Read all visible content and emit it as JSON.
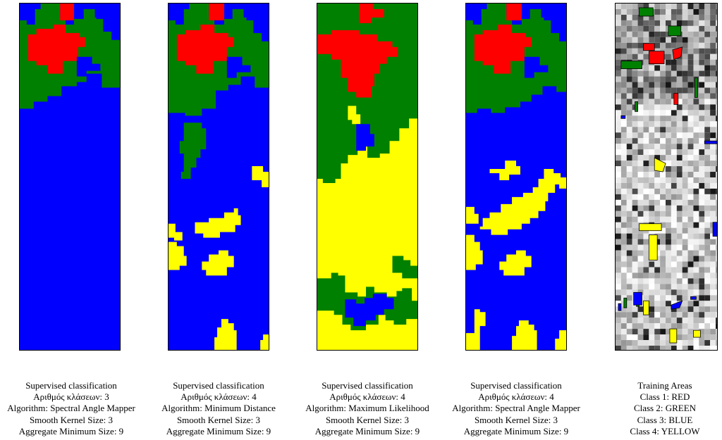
{
  "classes": {
    "red": "#ff0000",
    "green": "#008000",
    "blue": "#0000ff",
    "yellow": "#ffff00"
  },
  "panels": [
    {
      "caption": [
        "Supervised classification",
        "Αριθμός κλάσεων: 3",
        "Algorithm: Spectral Angle Mapper",
        "Smooth Kernel Size: 3",
        "Aggregate Minimum Size: 9"
      ]
    },
    {
      "caption": [
        "Supervised classification",
        "Αριθμός κλάσεων: 4",
        "Algorithm: Minimum Distance",
        "Smooth Kernel Size: 3",
        "Aggregate Minimum Size: 9"
      ]
    },
    {
      "caption": [
        "Supervised classification",
        "Αριθμός κλάσεων: 4",
        "Algorithm: Maximum Likelihood",
        "Smooth Kernel Size: 3",
        "Aggregate Minimum Size: 9"
      ]
    },
    {
      "caption": [
        "Supervised classification",
        "Αριθμός κλάσεων: 4",
        "Algorithm: Spectral Angle Mapper",
        "Smooth Kernel Size: 3",
        "Aggregate Minimum Size: 9"
      ]
    },
    {
      "caption": [
        "Training Areas",
        "Class 1: RED",
        "Class 2: GREEN",
        "Class 3: BLUE",
        "Class 4: YELLOW"
      ]
    }
  ]
}
